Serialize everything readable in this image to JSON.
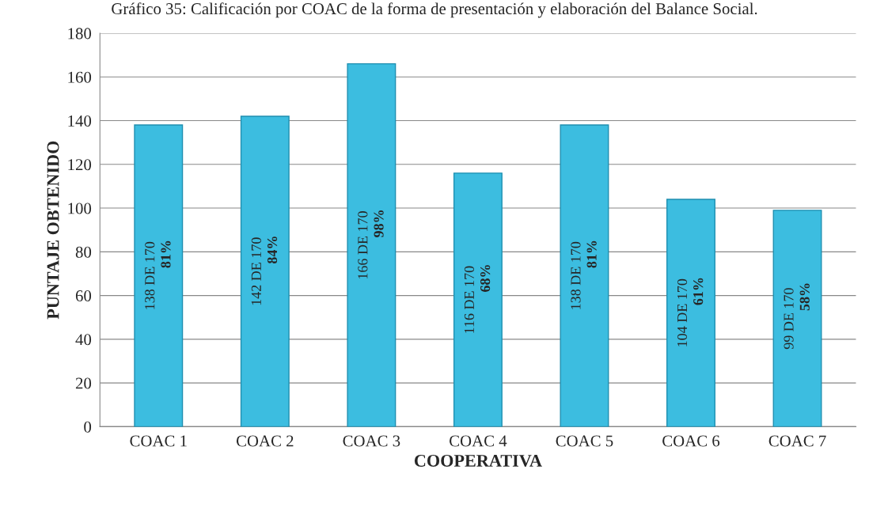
{
  "chart_data": {
    "type": "bar",
    "title": "Gráfico 35: Calificación por COAC de la forma de presentación y elaboración del Balance Social.",
    "xlabel": "COOPERATIVA",
    "ylabel": "PUNTAJE OBTENIDO",
    "categories": [
      "COAC 1",
      "COAC 2",
      "COAC 3",
      "COAC 4",
      "COAC 5",
      "COAC 6",
      "COAC 7"
    ],
    "values": [
      138,
      142,
      166,
      116,
      138,
      104,
      99
    ],
    "value_labels": [
      "138 DE 170\n81%",
      "142 DE 170\n84%",
      "166 DE 170\n98%",
      "116 DE 170\n68%",
      "138 DE 170\n81%",
      "104 DE 170\n61%",
      "99 DE 170\n58%"
    ],
    "color": "#3cbde0",
    "ylim": [
      0,
      180
    ],
    "yticks": [
      0,
      20,
      40,
      60,
      80,
      100,
      120,
      140,
      160,
      180
    ],
    "grid": "y"
  }
}
